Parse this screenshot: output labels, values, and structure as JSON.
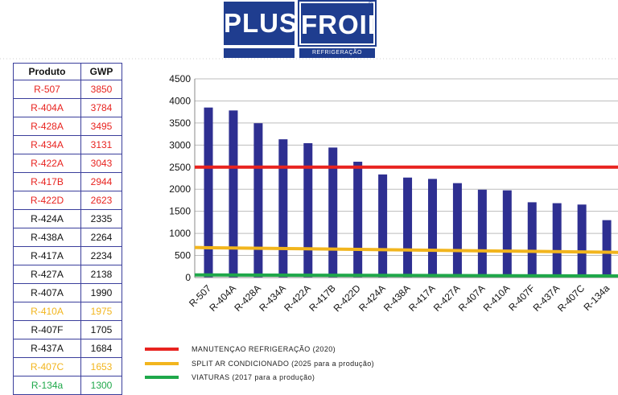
{
  "logo": {
    "left_word": "PLUS",
    "right_word": "FROID",
    "subtitle": "REFRIGERAÇÃO",
    "mark": "®"
  },
  "table": {
    "headers": [
      "Produto",
      "GWP"
    ],
    "rows": [
      {
        "produto": "R-507",
        "gwp": "3850",
        "color": "#e8231f"
      },
      {
        "produto": "R-404A",
        "gwp": "3784",
        "color": "#e8231f"
      },
      {
        "produto": "R-428A",
        "gwp": "3495",
        "color": "#e8231f"
      },
      {
        "produto": "R-434A",
        "gwp": "3131",
        "color": "#e8231f"
      },
      {
        "produto": "R-422A",
        "gwp": "3043",
        "color": "#e8231f"
      },
      {
        "produto": "R-417B",
        "gwp": "2944",
        "color": "#e8231f"
      },
      {
        "produto": "R-422D",
        "gwp": "2623",
        "color": "#e8231f"
      },
      {
        "produto": "R-424A",
        "gwp": "2335",
        "color": "#111111"
      },
      {
        "produto": "R-438A",
        "gwp": "2264",
        "color": "#111111"
      },
      {
        "produto": "R-417A",
        "gwp": "2234",
        "color": "#111111"
      },
      {
        "produto": "R-427A",
        "gwp": "2138",
        "color": "#111111"
      },
      {
        "produto": "R-407A",
        "gwp": "1990",
        "color": "#111111"
      },
      {
        "produto": "R-410A",
        "gwp": "1975",
        "color": "#f2b51d"
      },
      {
        "produto": "R-407F",
        "gwp": "1705",
        "color": "#111111"
      },
      {
        "produto": "R-437A",
        "gwp": "1684",
        "color": "#111111"
      },
      {
        "produto": "R-407C",
        "gwp": "1653",
        "color": "#f2b51d"
      },
      {
        "produto": "R-134a",
        "gwp": "1300",
        "color": "#1fa84a"
      }
    ]
  },
  "chart_data": {
    "type": "bar",
    "title": "",
    "xlabel": "",
    "ylabel": "",
    "ylim": [
      0,
      4500
    ],
    "yticks": [
      0,
      500,
      1000,
      1500,
      2000,
      2500,
      3000,
      3500,
      4000,
      4500
    ],
    "grid": true,
    "categories": [
      "R-507",
      "R-404A",
      "R-428A",
      "R-434A",
      "R-422A",
      "R-417B",
      "R-422D",
      "R-424A",
      "R-438A",
      "R-417A",
      "R-427A",
      "R-407A",
      "R-410A",
      "R-407F",
      "R-437A",
      "R-407C",
      "R-134a"
    ],
    "values": [
      3850,
      3784,
      3495,
      3131,
      3043,
      2944,
      2623,
      2335,
      2264,
      2234,
      2138,
      1990,
      1975,
      1705,
      1684,
      1653,
      1300
    ],
    "bar_color": "#2e2f91",
    "thresholds": [
      {
        "label": "MANUTENÇAO  REFRIGERAÇÃO  (2020)",
        "value": 2500,
        "color": "#e8231f"
      },
      {
        "label": "SPLIT   AR   CONDICIONADO   (2025 para a produção)",
        "value": 150,
        "color": "#f2b51d",
        "from": 680,
        "to": 570
      },
      {
        "label": "VIATURAS    (2017 para a produção)",
        "value": 150,
        "color": "#1fa84a"
      }
    ],
    "legend_position": "bottom"
  }
}
